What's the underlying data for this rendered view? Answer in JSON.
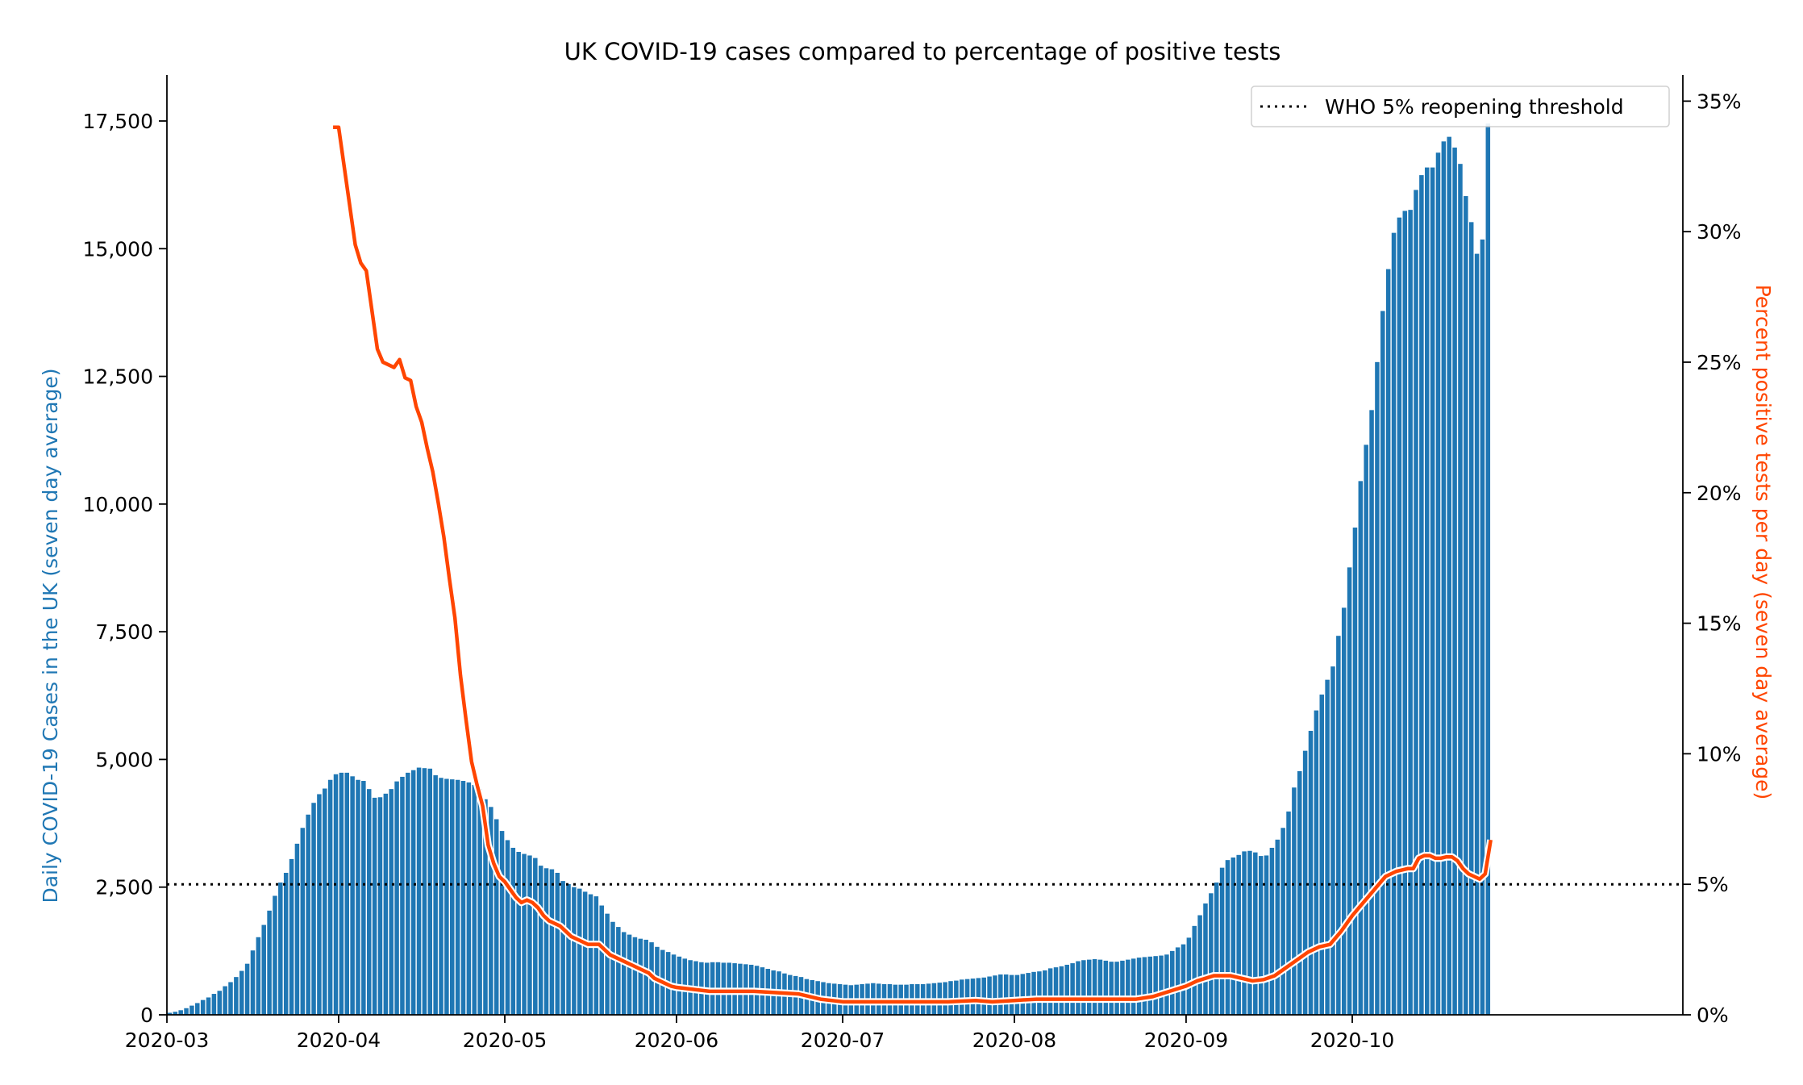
{
  "chart_data": {
    "type": "bar",
    "title": "UK COVID-19 cases compared to percentage of positive tests",
    "x_axis": {
      "type": "date",
      "range": [
        "2020-03-01",
        "2020-10-21"
      ],
      "ticks": [
        "2020-03",
        "2020-04",
        "2020-05",
        "2020-06",
        "2020-07",
        "2020-08",
        "2020-09",
        "2020-10"
      ]
    },
    "y_left": {
      "label": "Daily COVID-19 Cases in the UK (seven day average)",
      "color": "#1f77b4",
      "range": [
        0,
        18400
      ],
      "ticks": [
        0,
        2500,
        5000,
        7500,
        10000,
        12500,
        15000,
        17500
      ],
      "tick_labels": [
        "0",
        "2,500",
        "5,000",
        "7,500",
        "10,000",
        "12,500",
        "15,000",
        "17,500"
      ]
    },
    "y_right": {
      "label": "Percent positive tests per day (seven day average)",
      "color": "#ff4500",
      "range": [
        0,
        36
      ],
      "ticks": [
        0,
        5,
        10,
        15,
        20,
        25,
        30,
        35
      ],
      "tick_labels": [
        "0%",
        "5%",
        "10%",
        "15%",
        "20%",
        "25%",
        "30%",
        "35%"
      ]
    },
    "threshold": {
      "label": "WHO 5% reopening threshold",
      "value": 5,
      "axis": "right",
      "style": "dotted",
      "color": "#000000"
    },
    "legend": {
      "position": "top-right",
      "entries": [
        "WHO 5% reopening threshold"
      ]
    },
    "grid": false,
    "series": [
      {
        "name": "",
        "kind": "bar",
        "axis": "left",
        "color": "#1f77b4",
        "start_date": "2020-03-01",
        "values": [
          40,
          60,
          90,
          130,
          180,
          230,
          290,
          340,
          410,
          470,
          560,
          640,
          740,
          860,
          1000,
          1260,
          1520,
          1760,
          2040,
          2330,
          2590,
          2780,
          3050,
          3350,
          3660,
          3920,
          4150,
          4320,
          4430,
          4600,
          4710,
          4740,
          4740,
          4670,
          4600,
          4580,
          4420,
          4250,
          4260,
          4330,
          4420,
          4570,
          4660,
          4740,
          4790,
          4840,
          4830,
          4820,
          4690,
          4640,
          4620,
          4610,
          4600,
          4580,
          4550,
          4500,
          4420,
          4220,
          4070,
          3830,
          3600,
          3420,
          3270,
          3190,
          3150,
          3120,
          3070,
          2920,
          2870,
          2850,
          2780,
          2620,
          2560,
          2500,
          2470,
          2410,
          2360,
          2320,
          2140,
          1980,
          1820,
          1720,
          1620,
          1570,
          1520,
          1490,
          1470,
          1420,
          1330,
          1270,
          1230,
          1180,
          1140,
          1100,
          1070,
          1050,
          1030,
          1020,
          1030,
          1030,
          1020,
          1020,
          1010,
          1000,
          990,
          980,
          960,
          930,
          900,
          870,
          850,
          810,
          780,
          760,
          740,
          700,
          680,
          660,
          640,
          620,
          610,
          600,
          590,
          580,
          590,
          600,
          610,
          620,
          610,
          600,
          600,
          590,
          590,
          590,
          600,
          600,
          600,
          610,
          620,
          630,
          640,
          660,
          670,
          690,
          700,
          710,
          720,
          730,
          750,
          770,
          790,
          790,
          780,
          780,
          800,
          820,
          840,
          850,
          870,
          910,
          930,
          950,
          980,
          1010,
          1050,
          1070,
          1080,
          1090,
          1080,
          1060,
          1040,
          1040,
          1060,
          1080,
          1100,
          1120,
          1130,
          1140,
          1150,
          1160,
          1180,
          1250,
          1320,
          1380,
          1510,
          1740,
          1950,
          2180,
          2380,
          2590,
          2880,
          3030,
          3080,
          3130,
          3200,
          3210,
          3180,
          3110,
          3120,
          3270,
          3430,
          3660,
          3980,
          4450,
          4770,
          5170,
          5560,
          5960,
          6270,
          6560,
          6820,
          7420,
          7970,
          8760,
          9540,
          10450,
          11160,
          11840,
          12780,
          13780,
          14600,
          15310,
          15610,
          15740,
          15760,
          16150,
          16440,
          16590,
          16590,
          16880,
          17100,
          17190,
          16980,
          16660,
          16030,
          15520,
          14900,
          15180,
          17450
        ]
      },
      {
        "name": "",
        "kind": "line",
        "axis": "right",
        "color": "#ff4500",
        "points": [
          [
            "2020-03-31",
            34.0
          ],
          [
            "2020-04-01",
            34.0
          ],
          [
            "2020-04-02",
            32.5
          ],
          [
            "2020-04-03",
            31.0
          ],
          [
            "2020-04-04",
            29.5
          ],
          [
            "2020-04-05",
            28.8
          ],
          [
            "2020-04-06",
            28.5
          ],
          [
            "2020-04-07",
            27.0
          ],
          [
            "2020-04-08",
            25.5
          ],
          [
            "2020-04-09",
            25.0
          ],
          [
            "2020-04-10",
            24.9
          ],
          [
            "2020-04-11",
            24.8
          ],
          [
            "2020-04-12",
            25.1
          ],
          [
            "2020-04-13",
            24.4
          ],
          [
            "2020-04-14",
            24.3
          ],
          [
            "2020-04-15",
            23.3
          ],
          [
            "2020-04-16",
            22.7
          ],
          [
            "2020-04-17",
            21.7
          ],
          [
            "2020-04-18",
            20.8
          ],
          [
            "2020-04-19",
            19.6
          ],
          [
            "2020-04-20",
            18.3
          ],
          [
            "2020-04-21",
            16.7
          ],
          [
            "2020-04-22",
            15.2
          ],
          [
            "2020-04-23",
            13.0
          ],
          [
            "2020-04-24",
            11.3
          ],
          [
            "2020-04-25",
            9.7
          ],
          [
            "2020-04-26",
            8.8
          ],
          [
            "2020-04-27",
            8.0
          ],
          [
            "2020-04-28",
            6.5
          ],
          [
            "2020-04-29",
            5.8
          ],
          [
            "2020-04-30",
            5.3
          ],
          [
            "2020-05-01",
            5.1
          ],
          [
            "2020-05-02",
            4.8
          ],
          [
            "2020-05-03",
            4.5
          ],
          [
            "2020-05-04",
            4.3
          ],
          [
            "2020-05-05",
            4.4
          ],
          [
            "2020-05-06",
            4.3
          ],
          [
            "2020-05-07",
            4.1
          ],
          [
            "2020-05-08",
            3.8
          ],
          [
            "2020-05-09",
            3.6
          ],
          [
            "2020-05-10",
            3.5
          ],
          [
            "2020-05-11",
            3.4
          ],
          [
            "2020-05-12",
            3.2
          ],
          [
            "2020-05-13",
            3.0
          ],
          [
            "2020-05-14",
            2.9
          ],
          [
            "2020-05-15",
            2.8
          ],
          [
            "2020-05-16",
            2.7
          ],
          [
            "2020-05-17",
            2.7
          ],
          [
            "2020-05-18",
            2.7
          ],
          [
            "2020-05-19",
            2.5
          ],
          [
            "2020-05-20",
            2.3
          ],
          [
            "2020-05-21",
            2.2
          ],
          [
            "2020-05-22",
            2.1
          ],
          [
            "2020-05-23",
            2.0
          ],
          [
            "2020-05-24",
            1.9
          ],
          [
            "2020-05-25",
            1.8
          ],
          [
            "2020-05-26",
            1.7
          ],
          [
            "2020-05-27",
            1.6
          ],
          [
            "2020-05-28",
            1.4
          ],
          [
            "2020-05-29",
            1.3
          ],
          [
            "2020-05-30",
            1.2
          ],
          [
            "2020-05-31",
            1.1
          ],
          [
            "2020-06-01",
            1.05
          ],
          [
            "2020-06-03",
            1.0
          ],
          [
            "2020-06-05",
            0.95
          ],
          [
            "2020-06-07",
            0.9
          ],
          [
            "2020-06-09",
            0.9
          ],
          [
            "2020-06-15",
            0.9
          ],
          [
            "2020-06-19",
            0.85
          ],
          [
            "2020-06-23",
            0.8
          ],
          [
            "2020-06-27",
            0.6
          ],
          [
            "2020-07-01",
            0.5
          ],
          [
            "2020-07-05",
            0.5
          ],
          [
            "2020-07-10",
            0.5
          ],
          [
            "2020-07-20",
            0.5
          ],
          [
            "2020-07-25",
            0.55
          ],
          [
            "2020-07-28",
            0.5
          ],
          [
            "2020-08-01",
            0.55
          ],
          [
            "2020-08-05",
            0.6
          ],
          [
            "2020-08-10",
            0.6
          ],
          [
            "2020-08-16",
            0.6
          ],
          [
            "2020-08-23",
            0.6
          ],
          [
            "2020-08-26",
            0.7
          ],
          [
            "2020-08-29",
            0.9
          ],
          [
            "2020-09-01",
            1.1
          ],
          [
            "2020-09-03",
            1.3
          ],
          [
            "2020-09-06",
            1.5
          ],
          [
            "2020-09-09",
            1.5
          ],
          [
            "2020-09-11",
            1.4
          ],
          [
            "2020-09-13",
            1.3
          ],
          [
            "2020-09-15",
            1.35
          ],
          [
            "2020-09-17",
            1.5
          ],
          [
            "2020-09-19",
            1.8
          ],
          [
            "2020-09-21",
            2.1
          ],
          [
            "2020-09-23",
            2.4
          ],
          [
            "2020-09-25",
            2.6
          ],
          [
            "2020-09-27",
            2.7
          ],
          [
            "2020-09-29",
            3.2
          ],
          [
            "2020-10-01",
            3.8
          ],
          [
            "2020-10-03",
            4.3
          ],
          [
            "2020-10-05",
            4.8
          ],
          [
            "2020-10-07",
            5.3
          ],
          [
            "2020-10-09",
            5.5
          ],
          [
            "2020-10-11",
            5.6
          ],
          [
            "2020-10-12",
            5.6
          ],
          [
            "2020-10-13",
            6.0
          ],
          [
            "2020-10-14",
            6.1
          ],
          [
            "2020-10-15",
            6.1
          ],
          [
            "2020-10-16",
            6.0
          ],
          [
            "2020-10-17",
            6.0
          ],
          [
            "2020-10-18",
            6.05
          ],
          [
            "2020-10-19",
            6.05
          ],
          [
            "2020-10-20",
            5.9
          ],
          [
            "2020-10-21",
            5.6
          ],
          [
            "2020-10-22",
            5.4
          ],
          [
            "2020-10-23",
            5.3
          ],
          [
            "2020-10-24",
            5.2
          ],
          [
            "2020-10-25",
            5.4
          ],
          [
            "2020-10-26",
            6.7
          ]
        ]
      }
    ]
  }
}
